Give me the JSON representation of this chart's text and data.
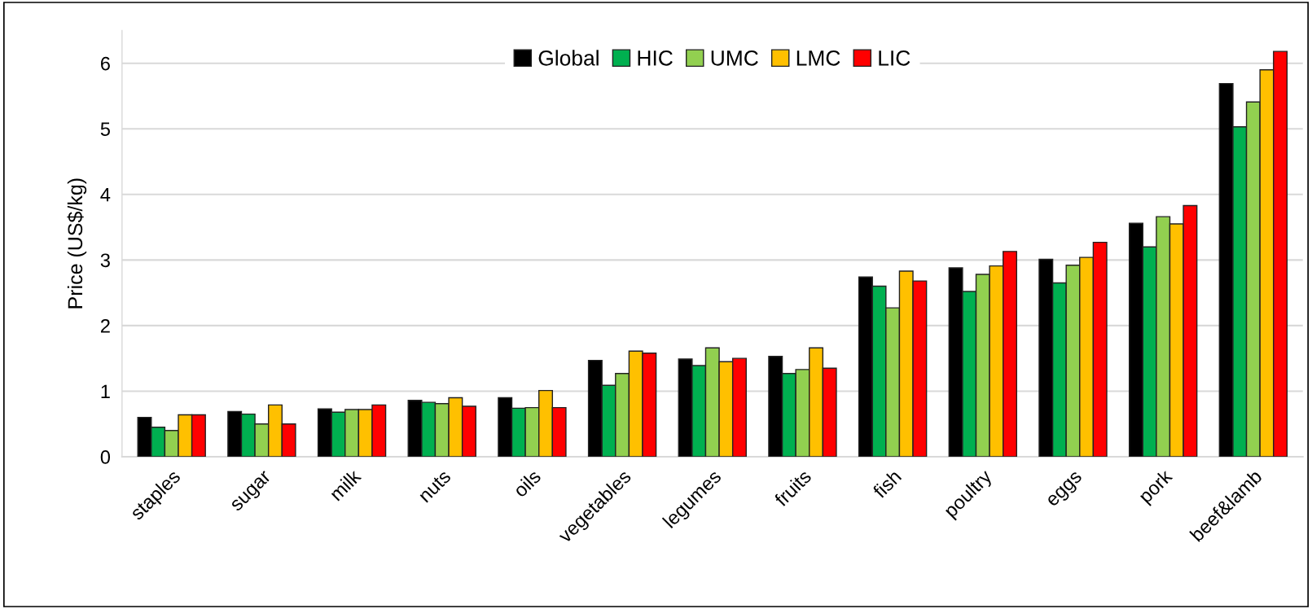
{
  "chart_data": {
    "type": "bar",
    "ylabel": "Price (US$/kg)",
    "categories": [
      "staples",
      "sugar",
      "milk",
      "nuts",
      "oils",
      "vegetables",
      "legumes",
      "fruits",
      "fish",
      "poultry",
      "eggs",
      "pork",
      "beef&lamb"
    ],
    "series": [
      {
        "name": "Global",
        "color": "#000000",
        "values": [
          0.6,
          0.69,
          0.73,
          0.86,
          0.9,
          1.47,
          1.49,
          1.53,
          2.74,
          2.88,
          3.01,
          3.56,
          5.69
        ]
      },
      {
        "name": "HIC",
        "color": "#00b050",
        "values": [
          0.45,
          0.65,
          0.68,
          0.83,
          0.74,
          1.09,
          1.39,
          1.27,
          2.6,
          2.52,
          2.65,
          3.2,
          5.03
        ]
      },
      {
        "name": "UMC",
        "color": "#92d050",
        "values": [
          0.4,
          0.5,
          0.72,
          0.81,
          0.75,
          1.27,
          1.66,
          1.33,
          2.27,
          2.78,
          2.92,
          3.66,
          5.41
        ]
      },
      {
        "name": "LMC",
        "color": "#ffc000",
        "values": [
          0.64,
          0.79,
          0.72,
          0.9,
          1.01,
          1.61,
          1.45,
          1.66,
          2.83,
          2.91,
          3.04,
          3.55,
          5.9
        ]
      },
      {
        "name": "LIC",
        "color": "#ff0000",
        "values": [
          0.64,
          0.5,
          0.79,
          0.77,
          0.75,
          1.58,
          1.5,
          1.35,
          2.68,
          3.13,
          3.27,
          3.83,
          6.18
        ]
      }
    ],
    "ylim": [
      0,
      6.5
    ],
    "yticks": [
      0,
      1,
      2,
      3,
      4,
      5,
      6
    ],
    "grid": "y",
    "legend": "top"
  }
}
